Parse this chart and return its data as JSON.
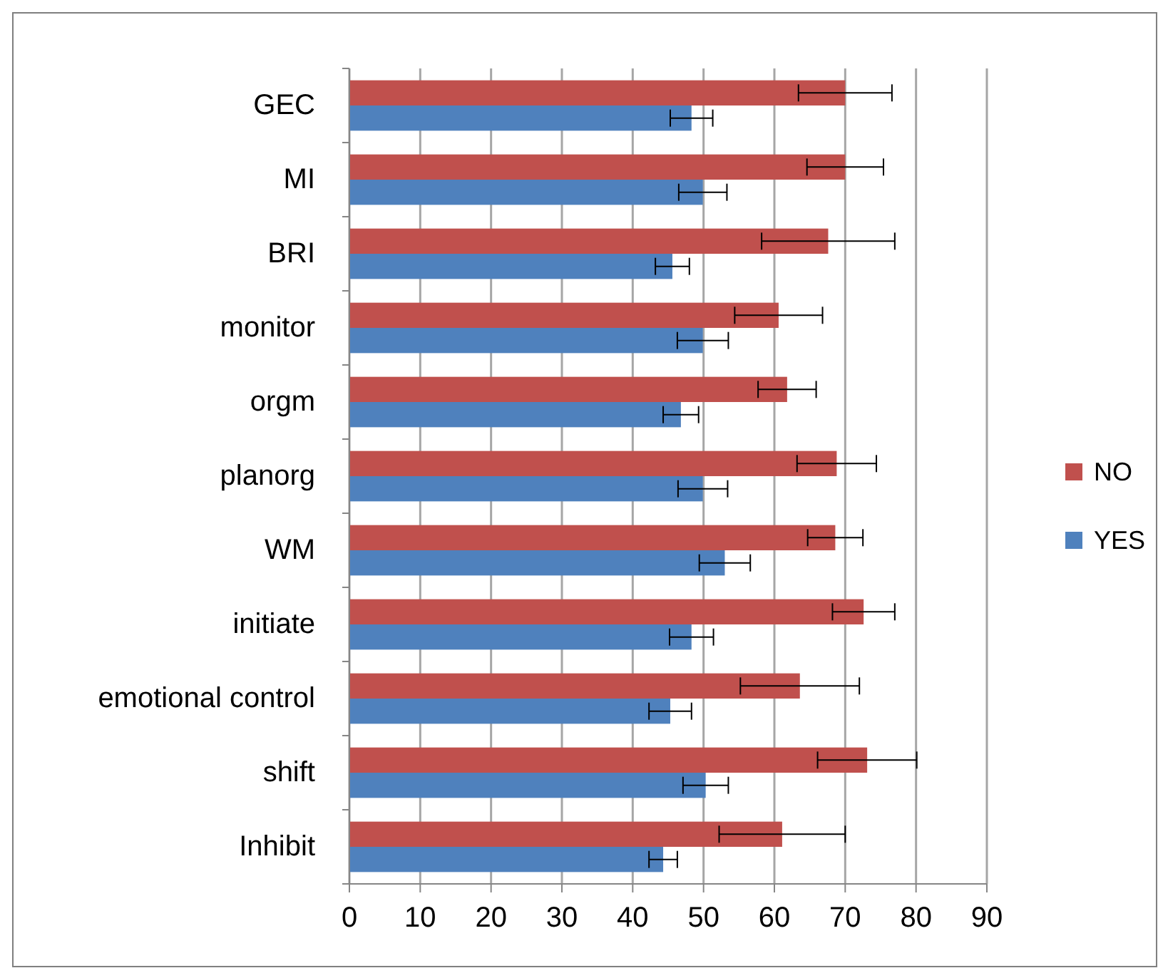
{
  "chart_data": {
    "type": "bar",
    "orientation": "horizontal",
    "categories": [
      "GEC",
      "MI",
      "BRI",
      "monitor",
      "orgm",
      "planorg",
      "WM",
      "initiate",
      "emotional control",
      "shift",
      "Inhibit"
    ],
    "series": [
      {
        "name": "NO",
        "color": "#c0504d",
        "values": [
          70,
          70,
          67.6,
          60.6,
          61.8,
          68.8,
          68.6,
          72.6,
          63.6,
          73.1,
          61.1
        ],
        "errors": [
          6.6,
          5.4,
          9.4,
          6.2,
          4.1,
          5.6,
          3.9,
          4.4,
          8.4,
          7,
          8.9
        ]
      },
      {
        "name": "YES",
        "color": "#4f81bd",
        "values": [
          48.3,
          49.9,
          45.6,
          49.9,
          46.8,
          49.9,
          53,
          48.3,
          45.3,
          50.3,
          44.3
        ],
        "errors": [
          3,
          3.4,
          2.4,
          3.6,
          2.5,
          3.5,
          3.6,
          3.1,
          3,
          3.2,
          2
        ]
      }
    ],
    "xlim": [
      0,
      90
    ],
    "xticks": [
      0,
      10,
      20,
      30,
      40,
      50,
      60,
      70,
      80,
      90
    ],
    "grid": "x",
    "legend": "right"
  }
}
